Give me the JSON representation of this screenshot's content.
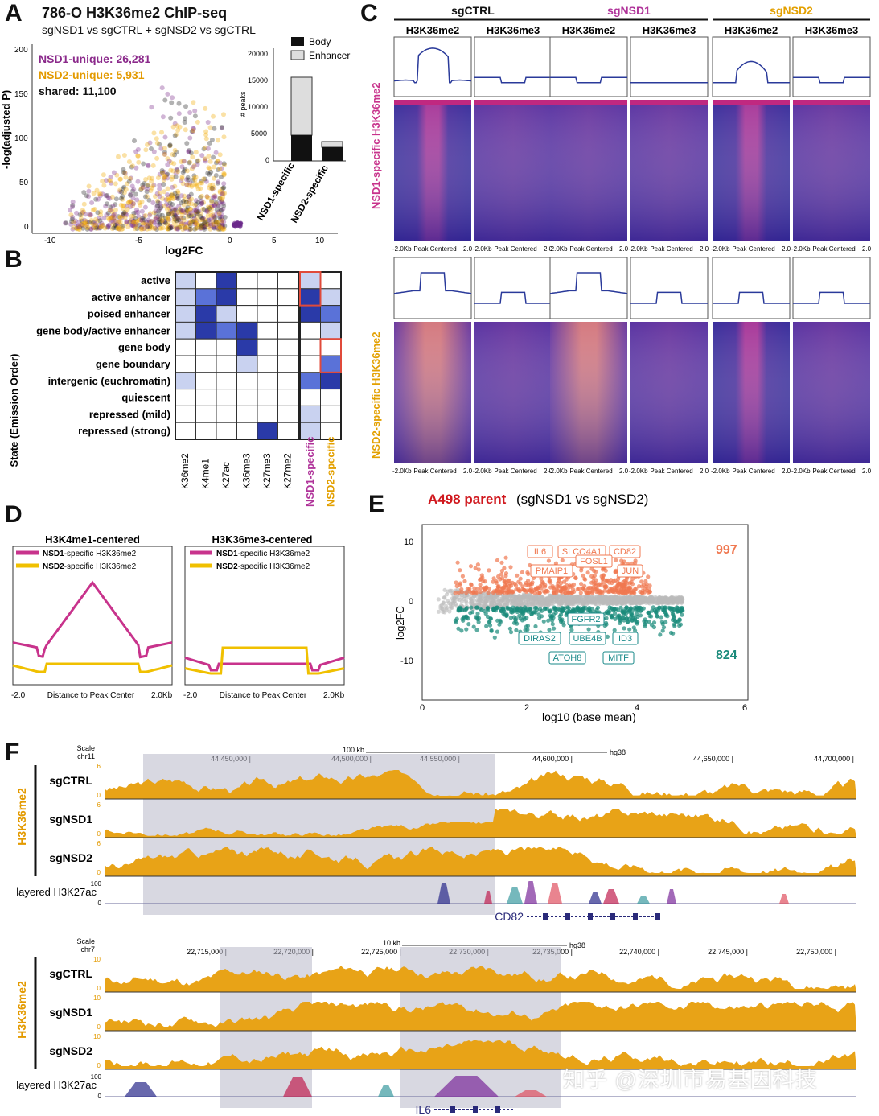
{
  "panel_letters": {
    "a": "A",
    "b": "B",
    "c": "C",
    "d": "D",
    "e": "E",
    "f": "F"
  },
  "watermark": "知乎 @深圳市易基因科技",
  "colors": {
    "nsd1": "#8b2a8b",
    "nsd2": "#f0a800",
    "magenta": "#c8338c",
    "teal": "#1a8a8a",
    "salmon": "#f07850",
    "red": "#d0181e",
    "heat_low": "#3b2a9a",
    "track": "#e8a317"
  },
  "panelA": {
    "title": "786-O H3K36me2 ChIP-seq",
    "subtitle": "sgNSD1 vs sgCTRL + sgNSD2 vs sgCTRL",
    "nsd1_unique": "NSD1-unique: 26,281",
    "nsd2_unique": "NSD2-unique: 5,931",
    "shared": "shared: 11,100",
    "ylabel": "-log(adjusted P)",
    "xlabel": "log2FC",
    "yticks": [
      "200",
      "150",
      "100",
      "50",
      "0"
    ],
    "xticks": [
      "-10",
      "-5",
      "0",
      "5",
      "10"
    ],
    "inset": {
      "ylabel": "# peaks",
      "yticks": [
        "20000",
        "15000",
        "10000",
        "5000",
        "0"
      ],
      "legend_body": "Body",
      "legend_enhancer": "Enhancer",
      "categories": [
        "NSD1-specific",
        "NSD2-specific"
      ]
    }
  },
  "panelB": {
    "ylabel": "State (Emission Order)",
    "states": [
      "active",
      "active enhancer",
      "poised enhancer",
      "gene body/active enhancer",
      "gene body",
      "gene boundary",
      "intergenic (euchromatin)",
      "quiescent",
      "repressed (mild)",
      "repressed (strong)"
    ],
    "marks": [
      "K36me2",
      "K4me1",
      "K27ac",
      "K36me3",
      "K27me3",
      "K27me2"
    ],
    "specific": [
      "NSD1-specific",
      "NSD2-specific"
    ]
  },
  "panelC": {
    "groups": [
      "sgCTRL",
      "sgNSD1",
      "sgNSD2"
    ],
    "marks": [
      "H3K36me2",
      "H3K36me3"
    ],
    "row1_label": "NSD1-specific H3K36me2",
    "row2_label": "NSD2-specific H3K36me2",
    "axis_left": "-2.0Kb",
    "axis_mid": "Peak Centered",
    "axis_right": "2.0"
  },
  "panelD": {
    "left_title": "H3K4me1-centered",
    "right_title": "H3K36me3-centered",
    "legend_nsd1": "-specific H3K36me2",
    "legend_nsd1_bold": "NSD1",
    "legend_nsd2": "-specific H3K36me2",
    "legend_nsd2_bold": "NSD2",
    "x_left": "-2.0",
    "x_mid": "Distance to Peak Center",
    "x_right": "2.0Kb"
  },
  "panelE": {
    "title_red": "A498 parent",
    "title_rest": "(sgNSD1 vs sgNSD2)",
    "ylabel": "log2FC",
    "xlabel": "log10 (base mean)",
    "count_up": "997",
    "count_down": "824",
    "yticks": [
      "10",
      "0",
      "-10"
    ],
    "xticks": [
      "0",
      "2",
      "4",
      "6"
    ],
    "up_genes": [
      "IL6",
      "SLCO4A1",
      "CD82",
      "PMAIP1",
      "FOSL1",
      "JUN"
    ],
    "down_genes": [
      "FGFR2",
      "DIRAS2",
      "UBE4B",
      "ID3",
      "ATOH8",
      "MITF"
    ]
  },
  "panelF": {
    "top": {
      "scale": "Scale",
      "chr": "chr11",
      "scale_bar": "100 kb",
      "genome": "hg38",
      "coords": [
        "44,450,000",
        "44,500,000",
        "44,550,000",
        "44,600,000",
        "44,650,000",
        "44,700,000"
      ],
      "tracks": [
        "sgCTRL",
        "sgNSD1",
        "sgNSD2"
      ],
      "y_max": "6",
      "y_min": "0",
      "layer_label": "layered H3K27ac",
      "layer_max": "100",
      "layer_min": "0",
      "gene": "CD82"
    },
    "bottom": {
      "scale": "Scale",
      "chr": "chr7",
      "scale_bar": "10 kb",
      "genome": "hg38",
      "coords": [
        "22,715,000",
        "22,720,000",
        "22,725,000",
        "22,730,000",
        "22,735,000",
        "22,740,000",
        "22,745,000",
        "22,750,000"
      ],
      "tracks": [
        "sgCTRL",
        "sgNSD1",
        "sgNSD2"
      ],
      "y_max": "10",
      "y_min": "0",
      "layer_label": "layered H3K27ac",
      "layer_max": "100",
      "layer_min": "0",
      "gene": "IL6"
    },
    "side_label": "H3K36me2"
  }
}
